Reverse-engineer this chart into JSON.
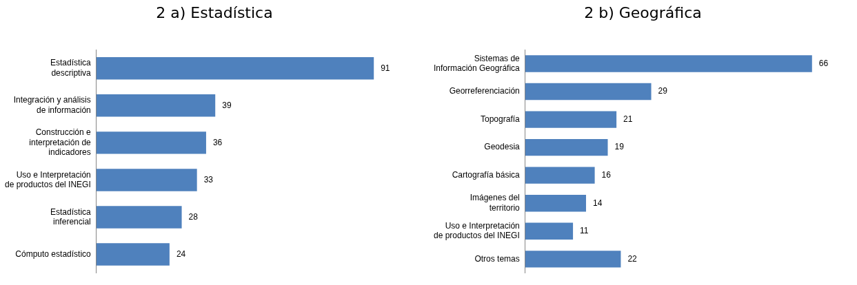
{
  "chart_data": [
    {
      "type": "bar",
      "title": "2 a) Estadística",
      "orientation": "horizontal",
      "data_labels": true,
      "legend": false,
      "tick_labels": "y",
      "categories": [
        "Estadística descriptiva",
        "Integración y análisis de información",
        "Construcción e interpretación de indicadores",
        "Uso e Interpretación de productos del INEGI",
        "Estadística inferencial",
        "Cómputo estadístico"
      ],
      "series": [
        {
          "color": "#4f81bd",
          "values": [
            91,
            39,
            36,
            33,
            28,
            24
          ]
        }
      ]
    },
    {
      "type": "bar",
      "title": "2 b) Geográfica",
      "orientation": "horizontal",
      "data_labels": true,
      "legend": false,
      "tick_labels": "y",
      "categories": [
        "Sistemas de Información Geográfica",
        "Georreferenciación",
        "Topografía",
        "Geodesia",
        "Cartografía básica",
        "Imágenes del territorio",
        "Uso e Interpretación de productos del INEGI",
        "Otros temas"
      ],
      "series": [
        {
          "color": "#4f81bd",
          "values": [
            66,
            29,
            21,
            19,
            16,
            14,
            11,
            22
          ]
        }
      ]
    }
  ]
}
